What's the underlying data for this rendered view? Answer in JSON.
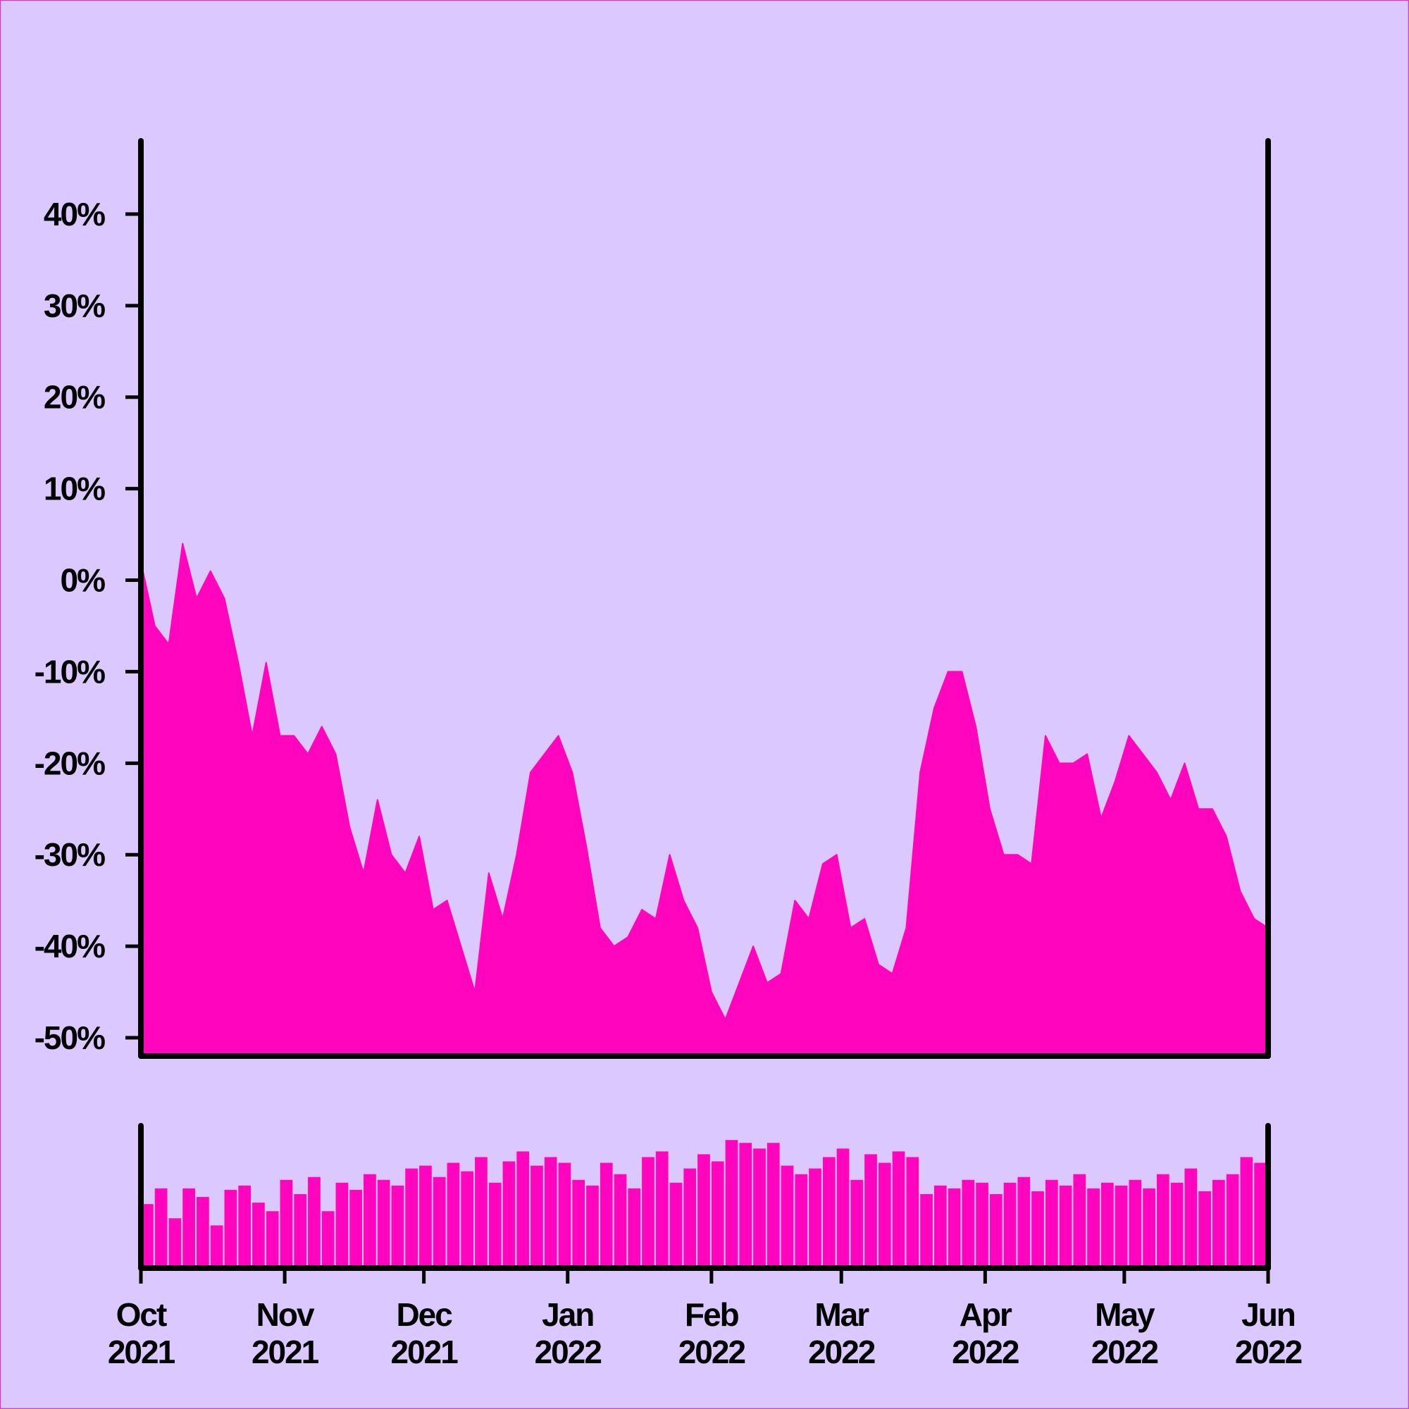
{
  "chart_data": [
    {
      "type": "area",
      "color": "#ff05be",
      "x": [
        "2021-10-01",
        "2021-10-04",
        "2021-10-07",
        "2021-10-10",
        "2021-10-13",
        "2021-10-16",
        "2021-10-19",
        "2021-10-22",
        "2021-10-25",
        "2021-10-28",
        "2021-10-31",
        "2021-11-03",
        "2021-11-06",
        "2021-11-09",
        "2021-11-12",
        "2021-11-15",
        "2021-11-18",
        "2021-11-21",
        "2021-11-24",
        "2021-11-27",
        "2021-11-30",
        "2021-12-03",
        "2021-12-06",
        "2021-12-09",
        "2021-12-12",
        "2021-12-15",
        "2021-12-18",
        "2021-12-21",
        "2021-12-24",
        "2021-12-27",
        "2021-12-30",
        "2022-01-02",
        "2022-01-05",
        "2022-01-08",
        "2022-01-11",
        "2022-01-14",
        "2022-01-17",
        "2022-01-20",
        "2022-01-23",
        "2022-01-26",
        "2022-01-29",
        "2022-02-01",
        "2022-02-04",
        "2022-02-07",
        "2022-02-10",
        "2022-02-13",
        "2022-02-16",
        "2022-02-19",
        "2022-02-22",
        "2022-02-25",
        "2022-02-28",
        "2022-03-03",
        "2022-03-06",
        "2022-03-09",
        "2022-03-12",
        "2022-03-15",
        "2022-03-18",
        "2022-03-21",
        "2022-03-24",
        "2022-03-27",
        "2022-03-30",
        "2022-04-02",
        "2022-04-05",
        "2022-04-08",
        "2022-04-11",
        "2022-04-14",
        "2022-04-17",
        "2022-04-20",
        "2022-04-23",
        "2022-04-26",
        "2022-04-29",
        "2022-05-02",
        "2022-05-05",
        "2022-05-08",
        "2022-05-11",
        "2022-05-14",
        "2022-05-17",
        "2022-05-20",
        "2022-05-23",
        "2022-05-26",
        "2022-05-29",
        "2022-06-01"
      ],
      "values": [
        2,
        -5,
        -7,
        4,
        -2,
        1,
        -2,
        -9,
        -17,
        -9,
        -17,
        -17,
        -19,
        -16,
        -19,
        -27,
        -32,
        -24,
        -30,
        -32,
        -28,
        -36,
        -35,
        -40,
        -45,
        -32,
        -37,
        -30,
        -21,
        -19,
        -17,
        -21,
        -29,
        -38,
        -40,
        -39,
        -36,
        -37,
        -30,
        -35,
        -38,
        -45,
        -48,
        -44,
        -40,
        -44,
        -43,
        -35,
        -37,
        -31,
        -30,
        -38,
        -37,
        -42,
        -43,
        -38,
        -21,
        -14,
        -10,
        -10,
        -16,
        -25,
        -30,
        -30,
        -31,
        -17,
        -20,
        -20,
        -19,
        -26,
        -22,
        -17,
        -19,
        -21,
        -24,
        -20,
        -25,
        -25,
        -28,
        -34,
        -37,
        -38
      ],
      "xlim": [
        "2021-10-01",
        "2022-06-01"
      ],
      "ylim": [
        -52,
        48
      ],
      "yticks": [
        {
          "value": 40,
          "label": "40%"
        },
        {
          "value": 30,
          "label": "30%"
        },
        {
          "value": 20,
          "label": "20%"
        },
        {
          "value": 10,
          "label": "10%"
        },
        {
          "value": 0,
          "label": "0%"
        },
        {
          "value": -10,
          "label": "-10%"
        },
        {
          "value": -20,
          "label": "-20%"
        },
        {
          "value": -30,
          "label": "-30%"
        },
        {
          "value": -40,
          "label": "-40%"
        },
        {
          "value": -50,
          "label": "-50%"
        }
      ]
    },
    {
      "type": "bar",
      "color": "#ff05be",
      "x": [
        "2021-10-01",
        "2021-10-04",
        "2021-10-07",
        "2021-10-10",
        "2021-10-13",
        "2021-10-16",
        "2021-10-19",
        "2021-10-22",
        "2021-10-25",
        "2021-10-28",
        "2021-10-31",
        "2021-11-03",
        "2021-11-06",
        "2021-11-09",
        "2021-11-12",
        "2021-11-15",
        "2021-11-18",
        "2021-11-21",
        "2021-11-24",
        "2021-11-27",
        "2021-11-30",
        "2021-12-03",
        "2021-12-06",
        "2021-12-09",
        "2021-12-12",
        "2021-12-15",
        "2021-12-18",
        "2021-12-21",
        "2021-12-24",
        "2021-12-27",
        "2021-12-30",
        "2022-01-02",
        "2022-01-05",
        "2022-01-08",
        "2022-01-11",
        "2022-01-14",
        "2022-01-17",
        "2022-01-20",
        "2022-01-23",
        "2022-01-26",
        "2022-01-29",
        "2022-02-01",
        "2022-02-04",
        "2022-02-07",
        "2022-02-10",
        "2022-02-13",
        "2022-02-16",
        "2022-02-19",
        "2022-02-22",
        "2022-02-25",
        "2022-02-28",
        "2022-03-03",
        "2022-03-06",
        "2022-03-09",
        "2022-03-12",
        "2022-03-15",
        "2022-03-18",
        "2022-03-21",
        "2022-03-24",
        "2022-03-27",
        "2022-03-30",
        "2022-04-02",
        "2022-04-05",
        "2022-04-08",
        "2022-04-11",
        "2022-04-14",
        "2022-04-17",
        "2022-04-20",
        "2022-04-23",
        "2022-04-26",
        "2022-04-29",
        "2022-05-02",
        "2022-05-05",
        "2022-05-08",
        "2022-05-11",
        "2022-05-14",
        "2022-05-17",
        "2022-05-20",
        "2022-05-23",
        "2022-05-26",
        "2022-05-29"
      ],
      "values": [
        45,
        56,
        35,
        56,
        50,
        30,
        55,
        58,
        46,
        40,
        62,
        52,
        64,
        40,
        60,
        55,
        66,
        62,
        58,
        70,
        72,
        64,
        74,
        68,
        78,
        60,
        75,
        82,
        72,
        78,
        74,
        62,
        58,
        74,
        66,
        56,
        78,
        82,
        60,
        70,
        80,
        75,
        90,
        88,
        84,
        88,
        72,
        66,
        70,
        78,
        84,
        62,
        80,
        74,
        82,
        78,
        52,
        58,
        56,
        62,
        60,
        52,
        60,
        64,
        54,
        62,
        58,
        66,
        56,
        60,
        58,
        62,
        56,
        66,
        60,
        70,
        54,
        62,
        66,
        78,
        74
      ],
      "xlim": [
        "2021-10-01",
        "2022-06-01"
      ],
      "ylim": [
        0,
        100
      ],
      "xticks": [
        {
          "value": "2021-10-01",
          "label": "Oct 2021"
        },
        {
          "value": "2021-11-01",
          "label": "Nov 2021"
        },
        {
          "value": "2021-12-01",
          "label": "Dec 2021"
        },
        {
          "value": "2022-01-01",
          "label": "Jan 2022"
        },
        {
          "value": "2022-02-01",
          "label": "Feb 2022"
        },
        {
          "value": "2022-03-01",
          "label": "Mar 2022"
        },
        {
          "value": "2022-04-01",
          "label": "Apr 2022"
        },
        {
          "value": "2022-05-01",
          "label": "May 2022"
        },
        {
          "value": "2022-06-01",
          "label": "Jun 2022"
        }
      ]
    }
  ]
}
